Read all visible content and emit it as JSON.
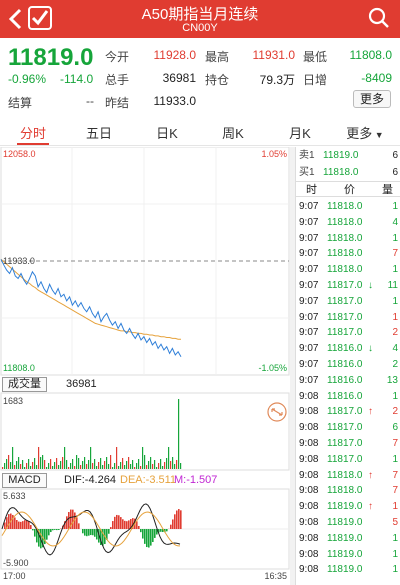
{
  "header": {
    "title": "A50期指当月连续",
    "code": "CN00Y"
  },
  "quote": {
    "price": "11819.0",
    "change_pct": "-0.96%",
    "change_abs": "-114.0",
    "settle_label": "结算",
    "settle_value": "--",
    "fields": [
      {
        "label": "今开",
        "value": "11928.0",
        "tone": "red"
      },
      {
        "label": "最高",
        "value": "11931.0",
        "tone": "red"
      },
      {
        "label": "最低",
        "value": "11808.0",
        "tone": "green"
      },
      {
        "label": "总手",
        "value": "36981",
        "tone": "dark"
      },
      {
        "label": "持仓",
        "value": "79.3万",
        "tone": "dark"
      },
      {
        "label": "日增",
        "value": "-8409",
        "tone": "green"
      },
      {
        "label": "昨结",
        "value": "11933.0",
        "tone": "dark"
      }
    ],
    "more_label": "更多"
  },
  "tabs": [
    {
      "label": "分时",
      "active": true
    },
    {
      "label": "五日",
      "active": false
    },
    {
      "label": "日K",
      "active": false
    },
    {
      "label": "周K",
      "active": false
    },
    {
      "label": "月K",
      "active": false
    },
    {
      "label": "更多",
      "active": false
    }
  ],
  "chart_data": {
    "type": "line",
    "price_axis": {
      "top": "12058.0",
      "bottom": "11808.0",
      "top_pct": "1.05%",
      "bottom_pct": "-1.05%",
      "ref": "11933.0"
    },
    "ylim": [
      11808.0,
      12058.0
    ],
    "ref_price": 11933.0,
    "price_series": [
      11935,
      11928,
      11922,
      11918,
      11925,
      11915,
      11912,
      11918,
      11910,
      11905,
      11912,
      11920,
      11915,
      11902,
      11908,
      11900,
      11895,
      11905,
      11898,
      11893,
      11900,
      11890,
      11893,
      11885,
      11890,
      11880,
      11885,
      11878,
      11883,
      11876,
      11872,
      11878,
      11870,
      11865,
      11872,
      11860,
      11866,
      11870,
      11862,
      11856,
      11860,
      11852,
      11858,
      11850,
      11846,
      11852,
      11845,
      11840,
      11846,
      11838,
      11842,
      11835,
      11840,
      11832,
      11836,
      11828,
      11833,
      11826,
      11830,
      11822,
      11828,
      11820,
      11824,
      11818
    ],
    "avg_series": [
      11935,
      11932,
      11929,
      11926,
      11923,
      11920,
      11917,
      11914,
      11911,
      11908,
      11906,
      11903,
      11901,
      11898,
      11896,
      11894,
      11892,
      11890,
      11888,
      11886,
      11884,
      11882,
      11880,
      11878,
      11876,
      11874,
      11872,
      11870,
      11868,
      11866,
      11864,
      11862,
      11860,
      11858,
      11857,
      11856,
      11855,
      11854,
      11853,
      11852,
      11851,
      11850,
      11849,
      11849,
      11848,
      11848,
      11847,
      11847,
      11846,
      11846,
      11845,
      11845,
      11844,
      11844,
      11843,
      11843,
      11842,
      11842,
      11841,
      11841,
      11840,
      11840,
      11839,
      11839
    ],
    "volume": {
      "label": "成交量",
      "total": "36981",
      "max": "1683"
    },
    "macd": {
      "label": "MACD",
      "dif": "DIF:-4.264",
      "dea": "DEA:-3.511",
      "m": "M:-1.507",
      "top": "5.633",
      "bottom": "-5.900"
    },
    "time_axis": {
      "start": "17:00",
      "end": "16:35"
    }
  },
  "orderbook": [
    {
      "side": "卖1",
      "price": "11819.0",
      "vol": "6"
    },
    {
      "side": "买1",
      "price": "11818.0",
      "vol": "6"
    }
  ],
  "trade_head": {
    "time": "时",
    "price": "价",
    "vol": "量"
  },
  "trades": [
    {
      "time": "9:07",
      "price": "11818.0",
      "vol": "1",
      "dir": "",
      "tone": "green"
    },
    {
      "time": "9:07",
      "price": "11818.0",
      "vol": "4",
      "dir": "",
      "tone": "green"
    },
    {
      "time": "9:07",
      "price": "11818.0",
      "vol": "1",
      "dir": "",
      "tone": "green"
    },
    {
      "time": "9:07",
      "price": "11818.0",
      "vol": "7",
      "dir": "",
      "tone": "red"
    },
    {
      "time": "9:07",
      "price": "11818.0",
      "vol": "1",
      "dir": "",
      "tone": "green"
    },
    {
      "time": "9:07",
      "price": "11817.0",
      "vol": "11",
      "dir": "↓",
      "tone": "green"
    },
    {
      "time": "9:07",
      "price": "11817.0",
      "vol": "1",
      "dir": "",
      "tone": "green"
    },
    {
      "time": "9:07",
      "price": "11817.0",
      "vol": "1",
      "dir": "",
      "tone": "red"
    },
    {
      "time": "9:07",
      "price": "11817.0",
      "vol": "2",
      "dir": "",
      "tone": "red"
    },
    {
      "time": "9:07",
      "price": "11816.0",
      "vol": "4",
      "dir": "↓",
      "tone": "green"
    },
    {
      "time": "9:07",
      "price": "11816.0",
      "vol": "2",
      "dir": "",
      "tone": "green"
    },
    {
      "time": "9:07",
      "price": "11816.0",
      "vol": "13",
      "dir": "",
      "tone": "green"
    },
    {
      "time": "9:08",
      "price": "11816.0",
      "vol": "1",
      "dir": "",
      "tone": "green"
    },
    {
      "time": "9:08",
      "price": "11817.0",
      "vol": "2",
      "dir": "↑",
      "tone": "red"
    },
    {
      "time": "9:08",
      "price": "11817.0",
      "vol": "6",
      "dir": "",
      "tone": "green"
    },
    {
      "time": "9:08",
      "price": "11817.0",
      "vol": "7",
      "dir": "",
      "tone": "red"
    },
    {
      "time": "9:08",
      "price": "11817.0",
      "vol": "1",
      "dir": "",
      "tone": "green"
    },
    {
      "time": "9:08",
      "price": "11818.0",
      "vol": "7",
      "dir": "↑",
      "tone": "red"
    },
    {
      "time": "9:08",
      "price": "11818.0",
      "vol": "7",
      "dir": "",
      "tone": "red"
    },
    {
      "time": "9:08",
      "price": "11819.0",
      "vol": "1",
      "dir": "↑",
      "tone": "red"
    },
    {
      "time": "9:08",
      "price": "11819.0",
      "vol": "5",
      "dir": "",
      "tone": "red"
    },
    {
      "time": "9:08",
      "price": "11819.0",
      "vol": "1",
      "dir": "",
      "tone": "green"
    },
    {
      "time": "9:08",
      "price": "11819.0",
      "vol": "1",
      "dir": "",
      "tone": "green"
    },
    {
      "time": "9:08",
      "price": "11819.0",
      "vol": "1",
      "dir": "",
      "tone": "green"
    }
  ],
  "colors": {
    "up": "#e03c31",
    "down": "#16a53a",
    "avg": "#e6a23c",
    "price_line": "#2f7fd8"
  },
  "icons": {
    "back": "chevron-left-icon",
    "watch": "checkbox-icon",
    "search": "search-icon",
    "rotate": "rotate-icon"
  }
}
